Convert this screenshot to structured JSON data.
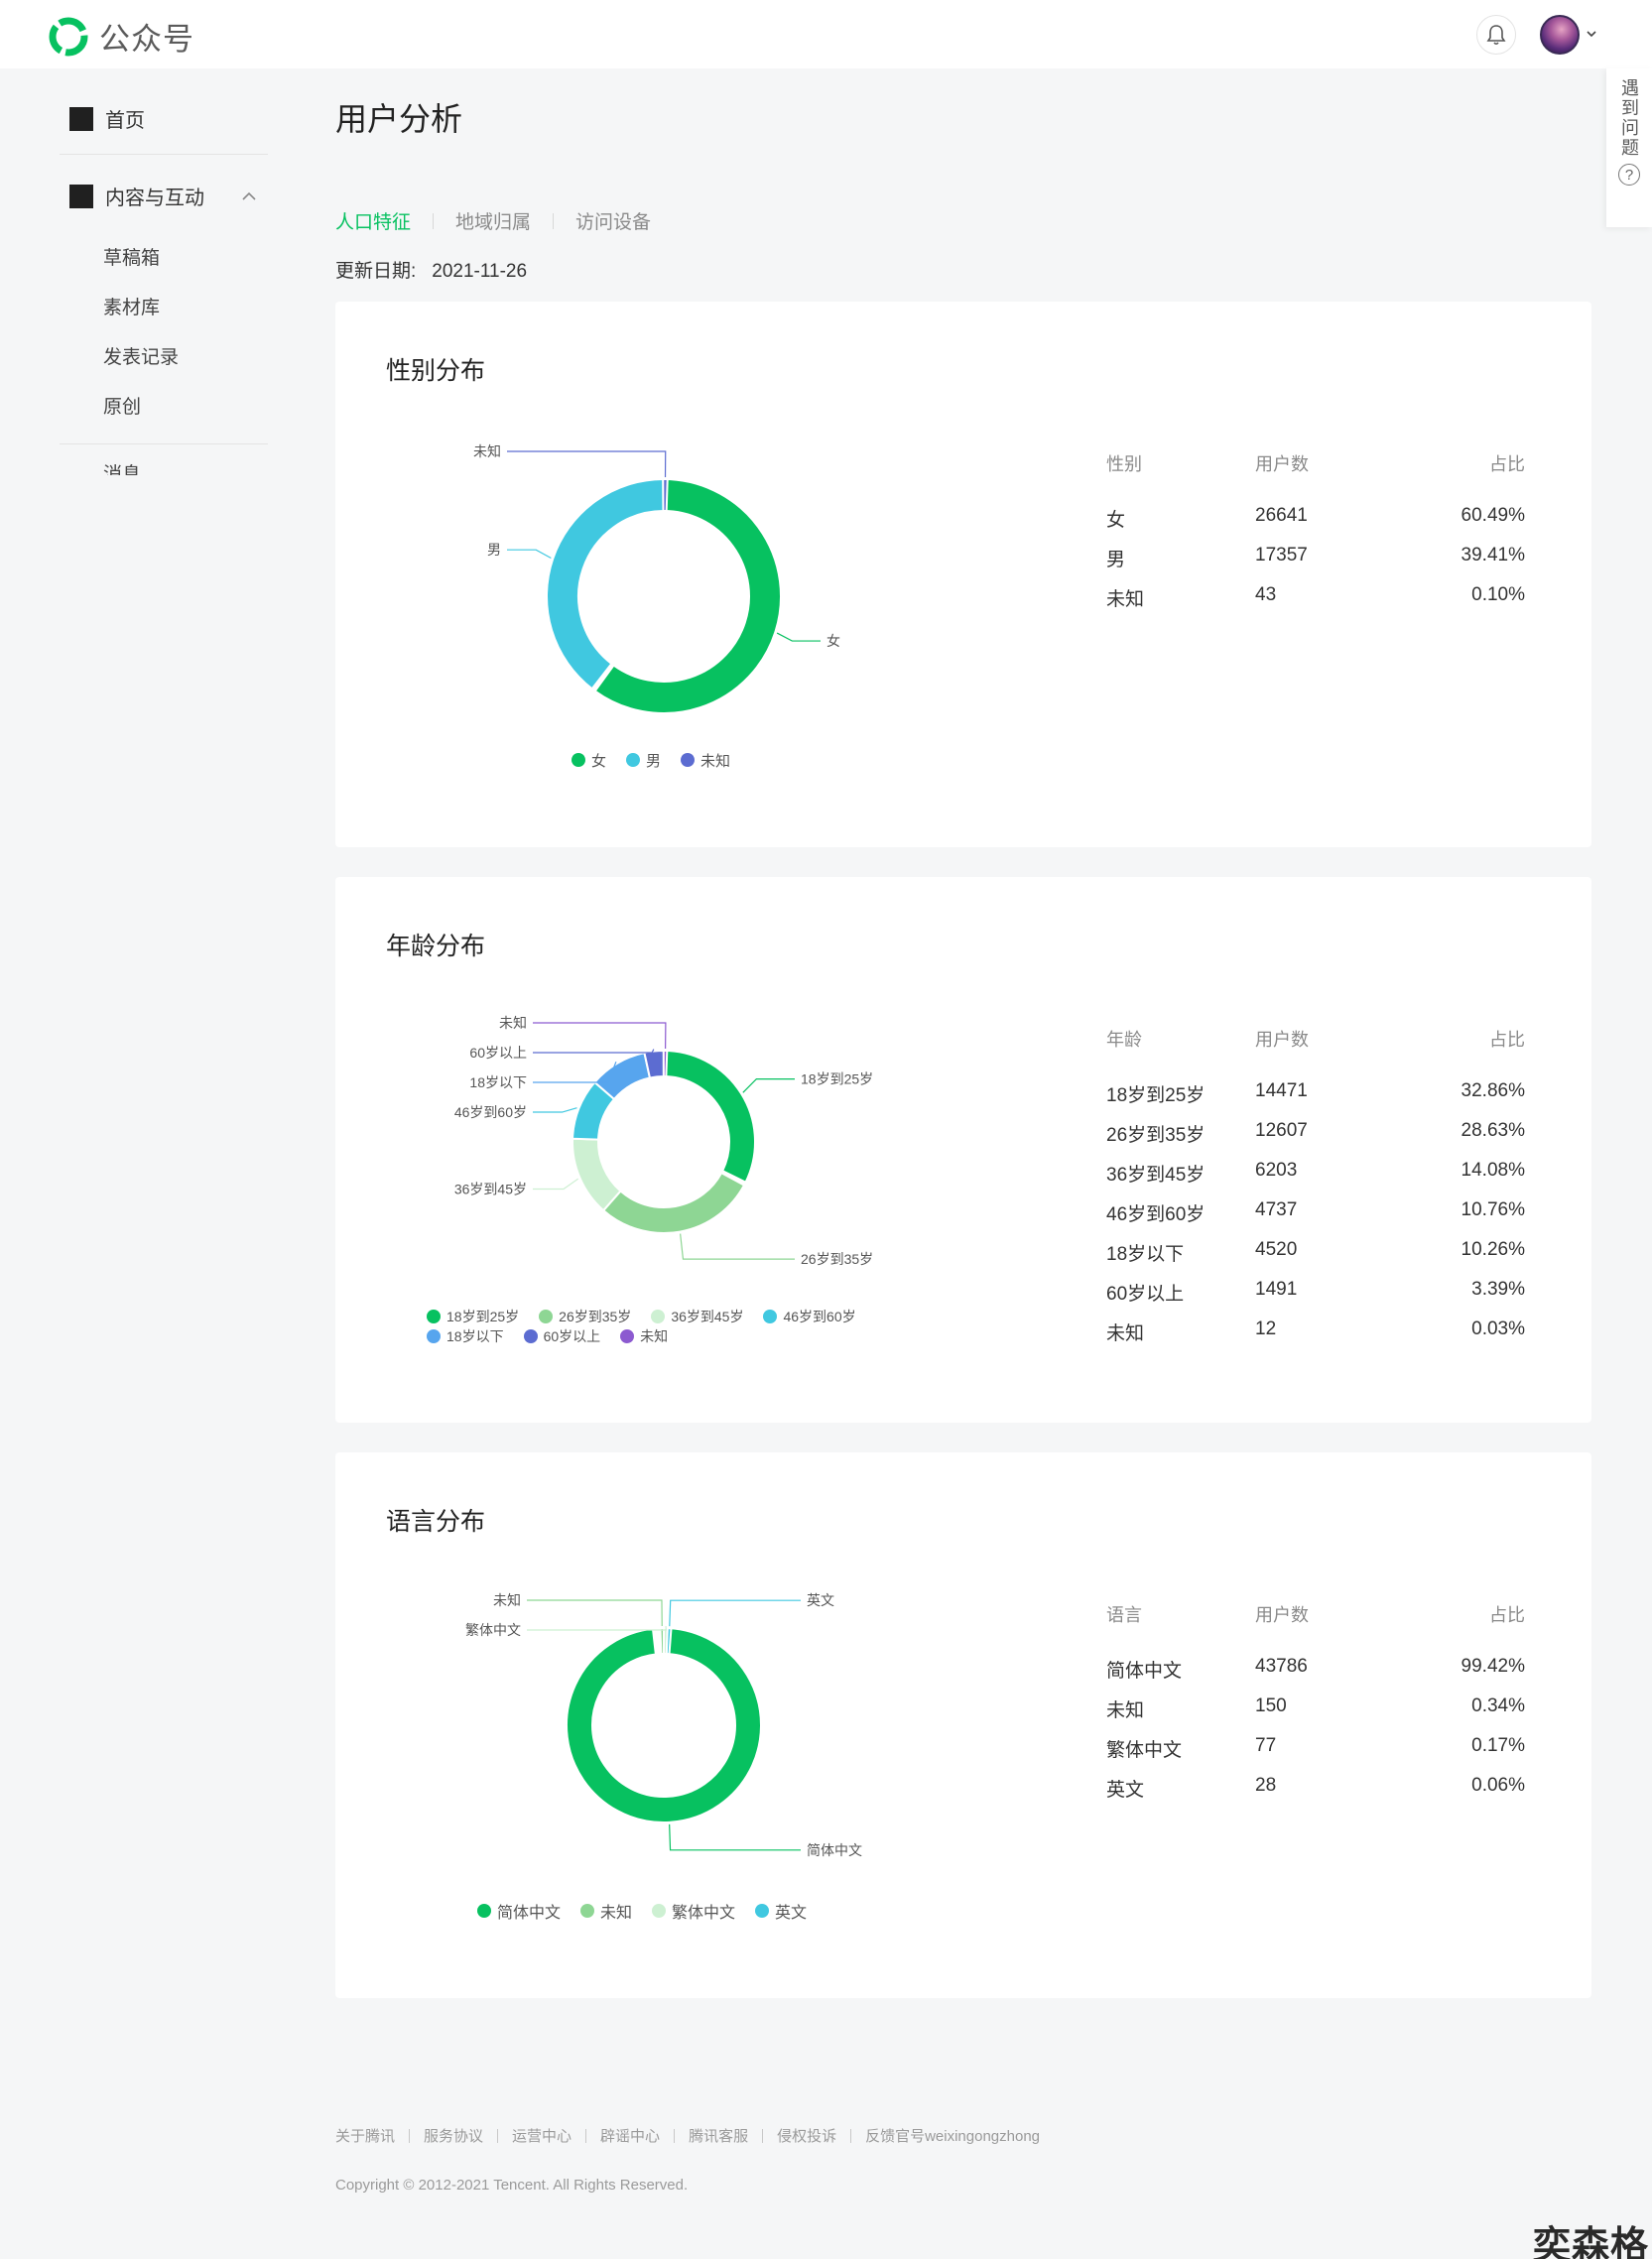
{
  "header": {
    "brand": "公众号",
    "bell_icon": "bell-icon",
    "avatar_icon": "avatar"
  },
  "help": {
    "label": "遇到问题",
    "icon": "?"
  },
  "sidebar": {
    "home": "首页",
    "group": "内容与互动",
    "items": [
      "草稿箱",
      "素材库",
      "发表记录",
      "原创"
    ],
    "cut_item": "消息"
  },
  "main": {
    "title": "用户分析",
    "tabs": [
      {
        "label": "人口特征",
        "active": true
      },
      {
        "label": "地域归属",
        "active": false
      },
      {
        "label": "访问设备",
        "active": false
      }
    ],
    "update_label": "更新日期:",
    "update_date": "2021-11-26"
  },
  "chart_data": [
    {
      "type": "pie",
      "title": "性别分布",
      "columns": [
        "性别",
        "用户数",
        "占比"
      ],
      "categories": [
        "女",
        "男",
        "未知"
      ],
      "values": [
        26641,
        17357,
        43
      ],
      "percents": [
        "60.49%",
        "39.41%",
        "0.10%"
      ],
      "colors": [
        "#07c160",
        "#40c8e0",
        "#5c6cd1"
      ],
      "legend": "bottom"
    },
    {
      "type": "pie",
      "title": "年龄分布",
      "columns": [
        "年龄",
        "用户数",
        "占比"
      ],
      "categories": [
        "18岁到25岁",
        "26岁到35岁",
        "36岁到45岁",
        "46岁到60岁",
        "18岁以下",
        "60岁以上",
        "未知"
      ],
      "values": [
        14471,
        12607,
        6203,
        4737,
        4520,
        1491,
        12
      ],
      "percents": [
        "32.86%",
        "28.63%",
        "14.08%",
        "10.76%",
        "10.26%",
        "3.39%",
        "0.03%"
      ],
      "colors": [
        "#07c160",
        "#8ed694",
        "#cdf0d2",
        "#40c8e0",
        "#57a5ee",
        "#5c6cd1",
        "#8c5ad0"
      ],
      "legend": "bottom"
    },
    {
      "type": "pie",
      "title": "语言分布",
      "columns": [
        "语言",
        "用户数",
        "占比"
      ],
      "categories": [
        "简体中文",
        "未知",
        "繁体中文",
        "英文"
      ],
      "values": [
        43786,
        150,
        77,
        28
      ],
      "percents": [
        "99.42%",
        "0.34%",
        "0.17%",
        "0.06%"
      ],
      "colors": [
        "#07c160",
        "#8ed694",
        "#cdf0d2",
        "#40c8e0"
      ],
      "legend": "bottom"
    }
  ],
  "footer": {
    "links": [
      "关于腾讯",
      "服务协议",
      "运营中心",
      "辟谣中心",
      "腾讯客服",
      "侵权投诉",
      "反馈官号weixingongzhong"
    ],
    "copyright": "Copyright © 2012-2021 Tencent. All Rights Reserved."
  },
  "watermark": "奕森格"
}
